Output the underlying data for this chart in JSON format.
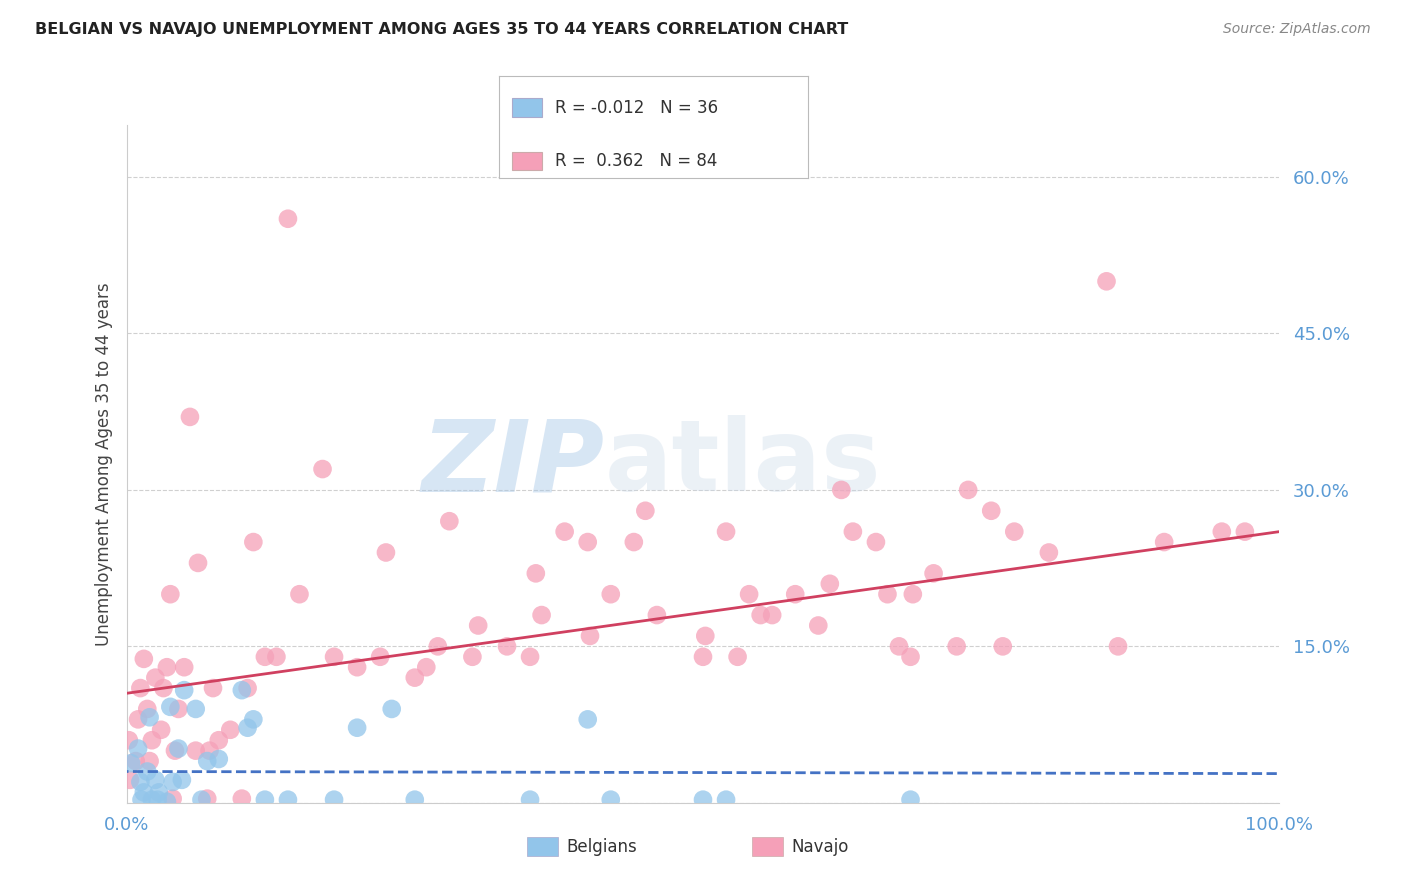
{
  "title": "BELGIAN VS NAVAJO UNEMPLOYMENT AMONG AGES 35 TO 44 YEARS CORRELATION CHART",
  "source": "Source: ZipAtlas.com",
  "ylabel": "Unemployment Among Ages 35 to 44 years",
  "xlim": [
    0,
    1.0
  ],
  "ylim": [
    0,
    0.65
  ],
  "yticks": [
    0.0,
    0.15,
    0.3,
    0.45,
    0.6
  ],
  "ytick_labels": [
    "",
    "15.0%",
    "30.0%",
    "45.0%",
    "60.0%"
  ],
  "xtick_vals": [
    0.0,
    1.0
  ],
  "xtick_labels": [
    "0.0%",
    "100.0%"
  ],
  "belgian_color": "#92C5EA",
  "navajo_color": "#F5A0B8",
  "belgian_line_color": "#4472C4",
  "navajo_line_color": "#D04060",
  "belgian_R": -0.012,
  "belgian_N": 36,
  "navajo_R": 0.362,
  "navajo_N": 84,
  "belgian_points": [
    [
      0.004,
      0.038
    ],
    [
      0.01,
      0.052
    ],
    [
      0.012,
      0.02
    ],
    [
      0.013,
      0.003
    ],
    [
      0.015,
      0.01
    ],
    [
      0.018,
      0.03
    ],
    [
      0.02,
      0.082
    ],
    [
      0.022,
      0.003
    ],
    [
      0.025,
      0.022
    ],
    [
      0.027,
      0.003
    ],
    [
      0.028,
      0.01
    ],
    [
      0.035,
      0.001
    ],
    [
      0.038,
      0.092
    ],
    [
      0.04,
      0.02
    ],
    [
      0.045,
      0.052
    ],
    [
      0.048,
      0.022
    ],
    [
      0.05,
      0.108
    ],
    [
      0.06,
      0.09
    ],
    [
      0.065,
      0.003
    ],
    [
      0.07,
      0.04
    ],
    [
      0.08,
      0.042
    ],
    [
      0.1,
      0.108
    ],
    [
      0.105,
      0.072
    ],
    [
      0.11,
      0.08
    ],
    [
      0.12,
      0.003
    ],
    [
      0.14,
      0.003
    ],
    [
      0.18,
      0.003
    ],
    [
      0.2,
      0.072
    ],
    [
      0.23,
      0.09
    ],
    [
      0.25,
      0.003
    ],
    [
      0.35,
      0.003
    ],
    [
      0.4,
      0.08
    ],
    [
      0.42,
      0.003
    ],
    [
      0.5,
      0.003
    ],
    [
      0.52,
      0.003
    ],
    [
      0.68,
      0.003
    ]
  ],
  "navajo_points": [
    [
      0.002,
      0.06
    ],
    [
      0.003,
      0.022
    ],
    [
      0.008,
      0.04
    ],
    [
      0.01,
      0.08
    ],
    [
      0.012,
      0.11
    ],
    [
      0.015,
      0.138
    ],
    [
      0.018,
      0.09
    ],
    [
      0.02,
      0.04
    ],
    [
      0.022,
      0.06
    ],
    [
      0.025,
      0.12
    ],
    [
      0.03,
      0.07
    ],
    [
      0.032,
      0.11
    ],
    [
      0.035,
      0.13
    ],
    [
      0.038,
      0.2
    ],
    [
      0.04,
      0.004
    ],
    [
      0.042,
      0.05
    ],
    [
      0.045,
      0.09
    ],
    [
      0.05,
      0.13
    ],
    [
      0.055,
      0.37
    ],
    [
      0.06,
      0.05
    ],
    [
      0.062,
      0.23
    ],
    [
      0.07,
      0.004
    ],
    [
      0.072,
      0.05
    ],
    [
      0.075,
      0.11
    ],
    [
      0.08,
      0.06
    ],
    [
      0.09,
      0.07
    ],
    [
      0.1,
      0.004
    ],
    [
      0.105,
      0.11
    ],
    [
      0.11,
      0.25
    ],
    [
      0.12,
      0.14
    ],
    [
      0.13,
      0.14
    ],
    [
      0.14,
      0.56
    ],
    [
      0.15,
      0.2
    ],
    [
      0.17,
      0.32
    ],
    [
      0.18,
      0.14
    ],
    [
      0.2,
      0.13
    ],
    [
      0.22,
      0.14
    ],
    [
      0.225,
      0.24
    ],
    [
      0.25,
      0.12
    ],
    [
      0.26,
      0.13
    ],
    [
      0.27,
      0.15
    ],
    [
      0.28,
      0.27
    ],
    [
      0.3,
      0.14
    ],
    [
      0.305,
      0.17
    ],
    [
      0.33,
      0.15
    ],
    [
      0.35,
      0.14
    ],
    [
      0.355,
      0.22
    ],
    [
      0.36,
      0.18
    ],
    [
      0.38,
      0.26
    ],
    [
      0.4,
      0.25
    ],
    [
      0.402,
      0.16
    ],
    [
      0.42,
      0.2
    ],
    [
      0.44,
      0.25
    ],
    [
      0.45,
      0.28
    ],
    [
      0.46,
      0.18
    ],
    [
      0.5,
      0.14
    ],
    [
      0.502,
      0.16
    ],
    [
      0.52,
      0.26
    ],
    [
      0.53,
      0.14
    ],
    [
      0.54,
      0.2
    ],
    [
      0.55,
      0.18
    ],
    [
      0.56,
      0.18
    ],
    [
      0.58,
      0.2
    ],
    [
      0.6,
      0.17
    ],
    [
      0.61,
      0.21
    ],
    [
      0.62,
      0.3
    ],
    [
      0.63,
      0.26
    ],
    [
      0.65,
      0.25
    ],
    [
      0.66,
      0.2
    ],
    [
      0.67,
      0.15
    ],
    [
      0.68,
      0.14
    ],
    [
      0.682,
      0.2
    ],
    [
      0.7,
      0.22
    ],
    [
      0.72,
      0.15
    ],
    [
      0.73,
      0.3
    ],
    [
      0.75,
      0.28
    ],
    [
      0.76,
      0.15
    ],
    [
      0.77,
      0.26
    ],
    [
      0.8,
      0.24
    ],
    [
      0.85,
      0.5
    ],
    [
      0.86,
      0.15
    ],
    [
      0.9,
      0.25
    ],
    [
      0.95,
      0.26
    ],
    [
      0.97,
      0.26
    ]
  ],
  "navajo_line_intercept": 0.105,
  "navajo_line_slope": 0.155,
  "belgian_line_intercept": 0.03,
  "belgian_line_slope": -0.002
}
